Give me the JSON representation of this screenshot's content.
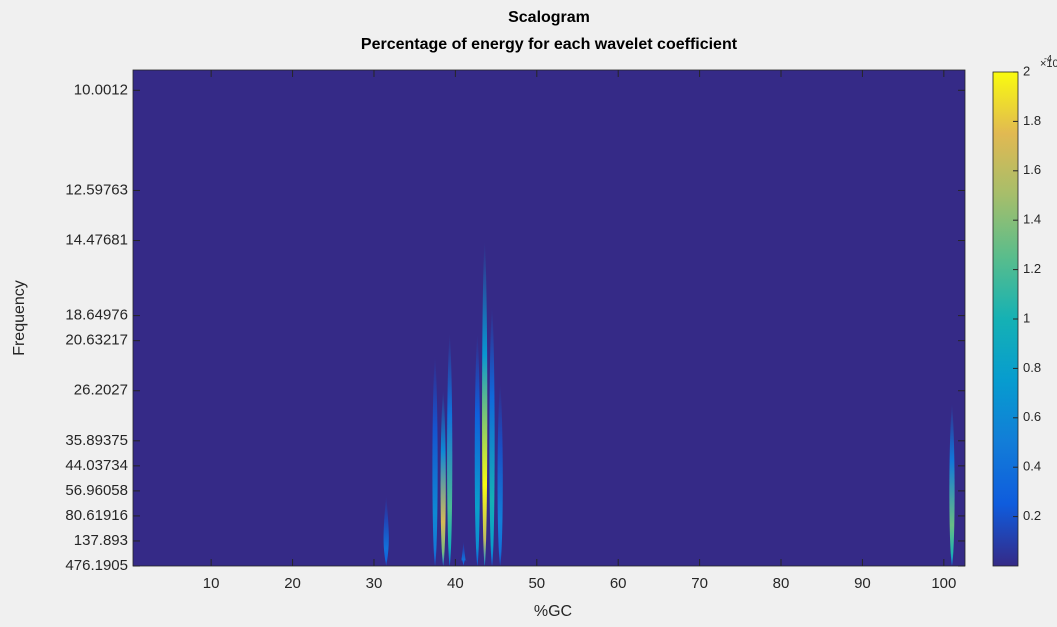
{
  "chart_data": {
    "type": "scalogram",
    "title": "Scalogram",
    "subtitle": "Percentage of energy for each wavelet coefficient",
    "x_label": "%GC",
    "y_label": "Frequency",
    "xlim": [
      0.4,
      102.6
    ],
    "xticks": [
      10,
      20,
      30,
      40,
      50,
      60,
      70,
      80,
      90,
      100
    ],
    "yscale": "reciprocal",
    "ylim": [
      476.1905,
      9.6
    ],
    "yticks": [
      10.0012,
      12.59763,
      14.47681,
      18.64976,
      20.63217,
      26.2027,
      35.89375,
      44.03734,
      56.96058,
      80.61916,
      137.893,
      476.1905
    ],
    "colormap": [
      "#352a87",
      "#0f5cdd",
      "#127dd8",
      "#079ccf",
      "#15b1b4",
      "#59bd8c",
      "#a5be6b",
      "#e1b952",
      "#f9fb0e"
    ],
    "clim": [
      0,
      2
    ],
    "cticks": [
      0.2,
      0.4,
      0.6,
      0.8,
      1,
      1.2,
      1.4,
      1.6,
      1.8,
      2
    ],
    "cmultiplier": "×10",
    "cexponent": "-4",
    "streaks": {
      "x": [
        31.5,
        37.5,
        38.5,
        39.3,
        41,
        42.7,
        43.6,
        44.5,
        45.5,
        101
      ],
      "top": [
        60,
        22,
        26,
        20,
        137.893,
        20,
        14.5,
        18,
        25,
        28
      ],
      "peak": [
        0.4,
        0.6,
        1.7,
        1.2,
        0.4,
        0.8,
        2,
        1.0,
        0.5,
        1.3
      ]
    }
  }
}
